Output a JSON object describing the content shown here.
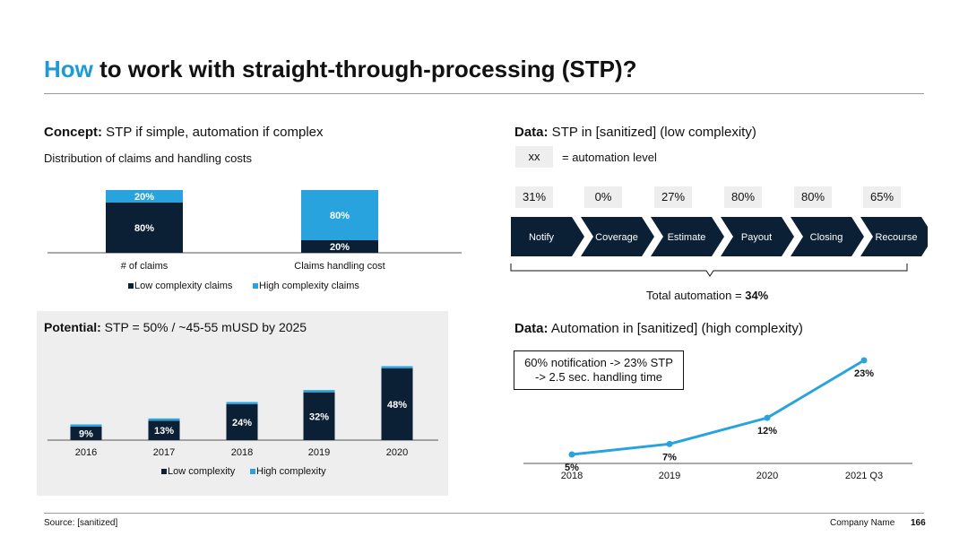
{
  "title": {
    "highlight": "How",
    "rest": " to work with straight-through-processing (STP)?"
  },
  "concept": {
    "head_bold": "Concept:",
    "head_rest": " STP if simple, automation if complex",
    "subtitle": "Distribution of claims and handling costs"
  },
  "potential": {
    "head_bold": "Potential:",
    "head_rest": " STP = 50% / ~45-55 mUSD by 2025"
  },
  "data_low": {
    "head_bold": "Data:",
    "head_rest": " STP in [sanitized] (low complexity)",
    "legend_box": "xx",
    "legend_text": "= automation level",
    "total_prefix": "Total automation = ",
    "total_value": "34%"
  },
  "data_high": {
    "head_bold": "Data:",
    "head_rest": " Automation in [sanitized] (high complexity)",
    "note_line1": "60% notification -> 23% STP",
    "note_line2": "-> 2.5 sec. handling time"
  },
  "process": {
    "steps": [
      {
        "label": "Notify",
        "automation": "31%"
      },
      {
        "label": "Coverage",
        "automation": "0%"
      },
      {
        "label": "Estimate",
        "automation": "27%"
      },
      {
        "label": "Payout",
        "automation": "80%"
      },
      {
        "label": "Closing",
        "automation": "80%"
      },
      {
        "label": "Recourse",
        "automation": "65%"
      }
    ]
  },
  "colors": {
    "dark": "#0b1f35",
    "light": "#29a3dd",
    "accent": "#1e9bd7"
  },
  "footer": {
    "source": "Source: [sanitized]",
    "company": "Company Name",
    "page": "166"
  },
  "chart_data": [
    {
      "type": "bar",
      "stacked": true,
      "normalized": true,
      "categories": [
        "# of claims",
        "Claims handling cost"
      ],
      "series": [
        {
          "name": "Low complexity claims",
          "values": [
            80,
            20
          ],
          "labels": [
            "80%",
            "20%"
          ]
        },
        {
          "name": "High complexity claims",
          "values": [
            20,
            80
          ],
          "labels": [
            "20%",
            "80%"
          ]
        }
      ],
      "legend": "bottom"
    },
    {
      "type": "bar",
      "stacked": true,
      "categories": [
        "2016",
        "2017",
        "2018",
        "2019",
        "2020"
      ],
      "series": [
        {
          "name": "Low complexity",
          "values": [
            9,
            13,
            24,
            32,
            48
          ],
          "labels": [
            "9%",
            "13%",
            "24%",
            "32%",
            "48%"
          ]
        },
        {
          "name": "High complexity",
          "values": [
            1,
            1,
            1,
            1,
            1
          ]
        }
      ],
      "legend": "bottom"
    },
    {
      "type": "line",
      "categories": [
        "2018",
        "2019",
        "2020",
        "2021 Q3"
      ],
      "values": [
        5,
        7,
        12,
        23
      ],
      "labels": [
        "5%",
        "7%",
        "12%",
        "23%"
      ]
    }
  ]
}
